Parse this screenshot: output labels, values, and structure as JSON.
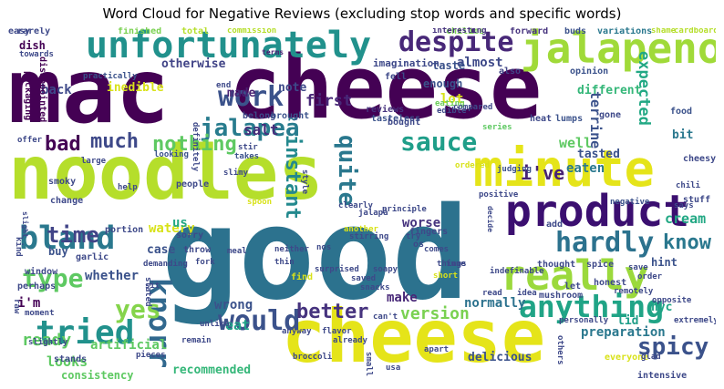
{
  "title": "Word Cloud for Negative Reviews (excluding stop words and specific words)",
  "colors": {
    "background": "#ffffff",
    "palette": "viridis",
    "title": "#000000"
  },
  "words": [
    {
      "text": "mac",
      "color": "#440154"
    },
    {
      "text": "cheese",
      "color": "#440154"
    },
    {
      "text": "noodles",
      "color": "#b5de2b"
    },
    {
      "text": "good",
      "color": "#2c728e"
    },
    {
      "text": "cheese",
      "color": "#e5e419"
    },
    {
      "text": "minute",
      "color": "#e5e419"
    },
    {
      "text": "product",
      "color": "#3b0f70"
    },
    {
      "text": "unfortunately",
      "color": "#21918c"
    },
    {
      "text": "jalapeno",
      "color": "#a0da39"
    },
    {
      "text": "really",
      "color": "#9bd93c"
    },
    {
      "text": "despite",
      "color": "#482878"
    },
    {
      "text": "bland",
      "color": "#2a788e"
    },
    {
      "text": "tried",
      "color": "#21918c"
    },
    {
      "text": "anything",
      "color": "#20a486"
    },
    {
      "text": "hardly",
      "color": "#2c728e"
    },
    {
      "text": "type",
      "color": "#5ec962"
    },
    {
      "text": "would",
      "color": "#3b528b"
    },
    {
      "text": "knorr",
      "color": "#31688e"
    },
    {
      "text": "yes",
      "color": "#84d44b"
    },
    {
      "text": "spicy",
      "color": "#3b528b"
    },
    {
      "text": "work",
      "color": "#3b528b"
    },
    {
      "text": "sauce",
      "color": "#1f9e89"
    },
    {
      "text": "jalapeã",
      "color": "#287c8e"
    },
    {
      "text": "nothing",
      "color": "#5ec962"
    },
    {
      "text": "much",
      "color": "#3e4989"
    },
    {
      "text": "bad",
      "color": "#440154"
    },
    {
      "text": "quite",
      "color": "#2a788e"
    },
    {
      "text": "instant",
      "color": "#23898e"
    },
    {
      "text": "version",
      "color": "#7ad151"
    },
    {
      "text": "better",
      "color": "#46337e"
    },
    {
      "text": "time",
      "color": "#414487"
    },
    {
      "text": "know",
      "color": "#2a788e"
    },
    {
      "text": "i've",
      "color": "#482475"
    },
    {
      "text": "ready",
      "color": "#5ec962"
    },
    {
      "text": "expected",
      "color": "#22a884"
    },
    {
      "text": "salt",
      "color": "#472d7b"
    },
    {
      "text": "first",
      "color": "#482878"
    },
    {
      "text": "lot",
      "color": "#d8e219"
    },
    {
      "text": "almost",
      "color": "#3e4989"
    },
    {
      "text": "note",
      "color": "#3e4989"
    },
    {
      "text": "made",
      "color": "#482173"
    },
    {
      "text": "inedible",
      "color": "#d8e219"
    },
    {
      "text": "otherwise",
      "color": "#414487"
    },
    {
      "text": "back",
      "color": "#3e4989"
    },
    {
      "text": "well",
      "color": "#5ec962"
    },
    {
      "text": "eaten",
      "color": "#2a788e"
    },
    {
      "text": "cream",
      "color": "#22a884"
    },
    {
      "text": "terrine",
      "color": "#3b528b"
    },
    {
      "text": "recommended",
      "color": "#35b779"
    },
    {
      "text": "preparation",
      "color": "#2a788e"
    },
    {
      "text": "looks",
      "color": "#5ec962"
    },
    {
      "text": "whether",
      "color": "#3b528b"
    },
    {
      "text": "wrong",
      "color": "#3b528b"
    },
    {
      "text": "worse",
      "color": "#46337e"
    },
    {
      "text": "eat",
      "color": "#1fa188"
    },
    {
      "text": "artificial",
      "color": "#5ec962"
    },
    {
      "text": "watery",
      "color": "#d8e219"
    },
    {
      "text": "case",
      "color": "#3b528b"
    },
    {
      "text": "us",
      "color": "#22a884"
    },
    {
      "text": "i'm",
      "color": "#440154"
    },
    {
      "text": "delicious",
      "color": "#3b528b"
    },
    {
      "text": "normally",
      "color": "#2c728e"
    },
    {
      "text": "make",
      "color": "#482878"
    },
    {
      "text": "tasted",
      "color": "#3b528b"
    },
    {
      "text": "bit",
      "color": "#2a788e"
    },
    {
      "text": "different",
      "color": "#35b779"
    },
    {
      "text": "enough",
      "color": "#3b528b"
    },
    {
      "text": "lid",
      "color": "#1f9e89"
    },
    {
      "text": "nyc",
      "color": "#20a486"
    },
    {
      "text": "consistency",
      "color": "#5ec962"
    },
    {
      "text": "hint",
      "color": "#3b528b"
    },
    {
      "text": "buy",
      "color": "#3b528b"
    },
    {
      "text": "dish",
      "color": "#440154"
    },
    {
      "text": "rarely",
      "color": "#3e4989"
    },
    {
      "text": "finished",
      "color": "#7ad151"
    },
    {
      "text": "total",
      "color": "#b5de2b"
    },
    {
      "text": "commission",
      "color": "#b5de2b"
    },
    {
      "text": "towards",
      "color": "#3e4989"
    },
    {
      "text": "terms",
      "color": "#482173"
    },
    {
      "text": "chilies",
      "color": "#7ad151"
    },
    {
      "text": "forward",
      "color": "#46337e"
    },
    {
      "text": "buds",
      "color": "#3b528b"
    },
    {
      "text": "variations",
      "color": "#2a788e"
    },
    {
      "text": "shame",
      "color": "#b5de2b"
    },
    {
      "text": "cardboard",
      "color": "#b5de2b"
    },
    {
      "text": "taste",
      "color": "#3b528b"
    },
    {
      "text": "also",
      "color": "#414487"
    },
    {
      "text": "imagination",
      "color": "#3e4989"
    },
    {
      "text": "end",
      "color": "#3e4989"
    },
    {
      "text": "fell",
      "color": "#3e4989"
    },
    {
      "text": "interesting",
      "color": "#46337e"
    },
    {
      "text": "practically",
      "color": "#3b528b"
    },
    {
      "text": "reviews",
      "color": "#46337e"
    },
    {
      "text": "eating",
      "color": "#6ccd5a"
    },
    {
      "text": "edible",
      "color": "#3e4989"
    },
    {
      "text": "tasteless",
      "color": "#3b528b"
    },
    {
      "text": "opinion",
      "color": "#3b528b"
    },
    {
      "text": "packaging",
      "color": "#440154"
    },
    {
      "text": "disappointed",
      "color": "#440154"
    },
    {
      "text": "belong",
      "color": "#3e4989"
    },
    {
      "text": "brought",
      "color": "#3b528b"
    },
    {
      "text": "bought",
      "color": "#3e4989"
    },
    {
      "text": "compared",
      "color": "#3e4989"
    },
    {
      "text": "series",
      "color": "#5ec962"
    },
    {
      "text": "lumps",
      "color": "#3b528b"
    },
    {
      "text": "heat",
      "color": "#3e4989"
    },
    {
      "text": "gone",
      "color": "#3e4989"
    },
    {
      "text": "food",
      "color": "#3b528b"
    },
    {
      "text": "definitely",
      "color": "#3e4989"
    },
    {
      "text": "offer",
      "color": "#3e4989"
    },
    {
      "text": "looking",
      "color": "#3b528b"
    },
    {
      "text": "stir",
      "color": "#3e4989"
    },
    {
      "text": "slimy",
      "color": "#3e4989"
    },
    {
      "text": "judging",
      "color": "#3b528b"
    },
    {
      "text": "cheesy",
      "color": "#3e4989"
    },
    {
      "text": "large",
      "color": "#3e4989"
    },
    {
      "text": "takes",
      "color": "#3b528b"
    },
    {
      "text": "chili",
      "color": "#3e4989"
    },
    {
      "text": "says",
      "color": "#3e4989"
    },
    {
      "text": "stuff",
      "color": "#3e4989"
    },
    {
      "text": "smoky",
      "color": "#3e4989"
    },
    {
      "text": "help",
      "color": "#3e4989"
    },
    {
      "text": "people",
      "color": "#3e4989"
    },
    {
      "text": "negative",
      "color": "#3b528b"
    },
    {
      "text": "slight",
      "color": "#3e4989"
    },
    {
      "text": "change",
      "color": "#3e4989"
    },
    {
      "text": "spoon",
      "color": "#d8e219"
    },
    {
      "text": "style",
      "color": "#3e4989"
    },
    {
      "text": "clearly",
      "color": "#3e4989"
    },
    {
      "text": "principle",
      "color": "#3e4989"
    },
    {
      "text": "positive",
      "color": "#3e4989"
    },
    {
      "text": "decide",
      "color": "#3e4989"
    },
    {
      "text": "add",
      "color": "#3e4989"
    },
    {
      "text": "kind",
      "color": "#3e4989"
    },
    {
      "text": "portion",
      "color": "#3e4989"
    },
    {
      "text": "garlic",
      "color": "#3e4989"
    },
    {
      "text": "sorry",
      "color": "#3e4989"
    },
    {
      "text": "throw",
      "color": "#3e4989"
    },
    {
      "text": "meal",
      "color": "#3e4989"
    },
    {
      "text": "neither",
      "color": "#3e4989"
    },
    {
      "text": "nos",
      "color": "#3e4989"
    },
    {
      "text": "another",
      "color": "#d8e219"
    },
    {
      "text": "fingers",
      "color": "#3e4989"
    },
    {
      "text": "things",
      "color": "#3e4989"
    },
    {
      "text": "indefinable",
      "color": "#3e4989"
    },
    {
      "text": "spice",
      "color": "#3e4989"
    },
    {
      "text": "order",
      "color": "#3e4989"
    },
    {
      "text": "window",
      "color": "#3e4989"
    },
    {
      "text": "demanding",
      "color": "#3e4989"
    },
    {
      "text": "thin",
      "color": "#3e4989"
    },
    {
      "text": "stirring",
      "color": "#3e4989"
    },
    {
      "text": "comes",
      "color": "#3e4989"
    },
    {
      "text": "tune",
      "color": "#3e4989"
    },
    {
      "text": "thought",
      "color": "#3e4989"
    },
    {
      "text": "save",
      "color": "#3e4989"
    },
    {
      "text": "perhaps",
      "color": "#3e4989"
    },
    {
      "text": "fork",
      "color": "#3e4989"
    },
    {
      "text": "surprised",
      "color": "#3e4989"
    },
    {
      "text": "find",
      "color": "#d8e219"
    },
    {
      "text": "soapy",
      "color": "#3e4989"
    },
    {
      "text": "short",
      "color": "#d8e219"
    },
    {
      "text": "let",
      "color": "#3e4989"
    },
    {
      "text": "honest",
      "color": "#3e4989"
    },
    {
      "text": "remotely",
      "color": "#3e4989"
    },
    {
      "text": "moment",
      "color": "#3e4989"
    },
    {
      "text": "sit",
      "color": "#3e4989"
    },
    {
      "text": "saved",
      "color": "#3e4989"
    },
    {
      "text": "snacks",
      "color": "#3e4989"
    },
    {
      "text": "mushroom",
      "color": "#3e4989"
    },
    {
      "text": "read",
      "color": "#3e4989"
    },
    {
      "text": "idea",
      "color": "#3e4989"
    },
    {
      "text": "opposite",
      "color": "#3e4989"
    },
    {
      "text": "raw",
      "color": "#3e4989"
    },
    {
      "text": "stated",
      "color": "#3e4989"
    },
    {
      "text": "unlike",
      "color": "#3e4989"
    },
    {
      "text": "anyway",
      "color": "#3e4989"
    },
    {
      "text": "flavor",
      "color": "#3e4989"
    },
    {
      "text": "can't",
      "color": "#3e4989"
    },
    {
      "text": "personally",
      "color": "#3e4989"
    },
    {
      "text": "slightly",
      "color": "#3e4989"
    },
    {
      "text": "pieces",
      "color": "#3e4989"
    },
    {
      "text": "remain",
      "color": "#3e4989"
    },
    {
      "text": "already",
      "color": "#3e4989"
    },
    {
      "text": "usa",
      "color": "#3e4989"
    },
    {
      "text": "others",
      "color": "#3e4989"
    },
    {
      "text": "extremely",
      "color": "#3e4989"
    },
    {
      "text": "stands",
      "color": "#3e4989"
    },
    {
      "text": "broccoli",
      "color": "#3e4989"
    },
    {
      "text": "small",
      "color": "#3e4989"
    },
    {
      "text": "apart",
      "color": "#3e4989"
    },
    {
      "text": "everyone",
      "color": "#d8e219"
    },
    {
      "text": "intensive",
      "color": "#3e4989"
    },
    {
      "text": "glad",
      "color": "#3e4989"
    },
    {
      "text": "ordered",
      "color": "#d8e219"
    },
    {
      "text": "os",
      "color": "#3e4989"
    },
    {
      "text": "try",
      "color": "#3e4989"
    },
    {
      "text": "jalapà",
      "color": "#3e4989"
    },
    {
      "text": "easy",
      "color": "#3e4989"
    }
  ]
}
